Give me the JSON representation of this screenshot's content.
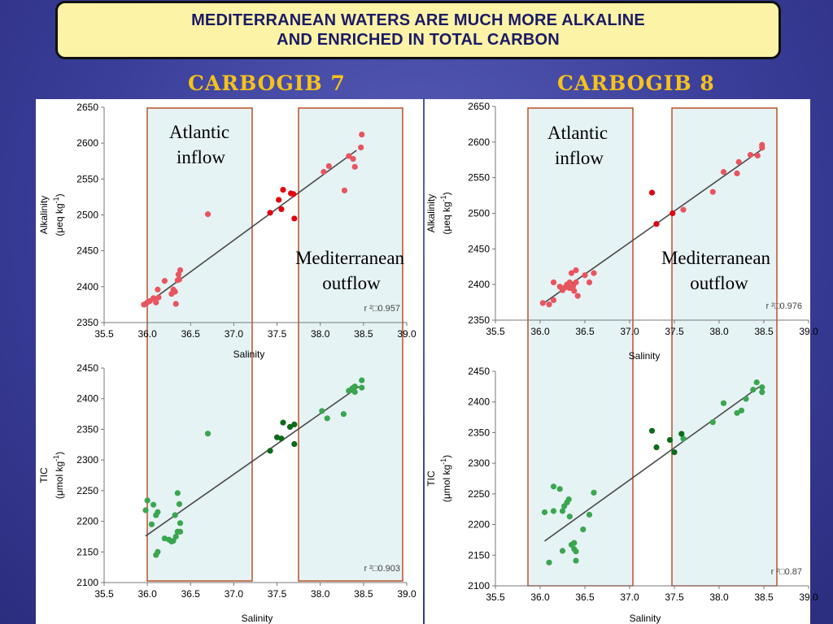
{
  "header": {
    "title_line1": "MEDITERRANEAN WATERS ARE MUCH MORE ALKALINE",
    "title_line2": "AND ENRICHED IN TOTAL CARBON"
  },
  "sections": {
    "left": "CARBOGIB 7",
    "right": "CARBOGIB 8"
  },
  "regions": {
    "atlantic_line1": "Atlantic",
    "atlantic_line2": "inflow",
    "med_line1": "Mediterranean",
    "med_line2": "outflow"
  },
  "colors": {
    "alk_light": "#e8555e",
    "alk_dark": "#e3040f",
    "tic_light": "#3aa64f",
    "tic_dark": "#0c6b1a",
    "region_fill": "#e6f3f5",
    "region_border": "#b8532a",
    "fit_line": "#4a4a4a"
  },
  "chart_data": [
    {
      "id": "c7_alk",
      "type": "scatter",
      "xlabel": "Salinity",
      "ylabel_line1": "Alkalinity",
      "ylabel_unit": "(μeq kg",
      "ylabel_sup": "-1",
      "ylabel_close": ")",
      "xlim": [
        35.5,
        39.0
      ],
      "ylim": [
        2350,
        2650
      ],
      "xticks": [
        "35.5",
        "36.0",
        "36.5",
        "37.0",
        "37.5",
        "38.0",
        "38.5",
        "39.0"
      ],
      "yticks": [
        "2350",
        "2400",
        "2450",
        "2500",
        "2550",
        "2600",
        "2650"
      ],
      "r2_label": "r ²□0.957",
      "fit": [
        [
          35.97,
          2374
        ],
        [
          38.42,
          2590
        ]
      ],
      "series": [
        {
          "color_key": "alk_light",
          "points": [
            [
              35.96,
              2375
            ],
            [
              35.98,
              2376
            ],
            [
              36.0,
              2378
            ],
            [
              36.03,
              2380
            ],
            [
              36.07,
              2384
            ],
            [
              36.1,
              2378
            ],
            [
              36.12,
              2396
            ],
            [
              36.13,
              2385
            ],
            [
              36.2,
              2408
            ],
            [
              36.28,
              2390
            ],
            [
              36.3,
              2396
            ],
            [
              36.32,
              2393
            ],
            [
              36.33,
              2376
            ],
            [
              36.35,
              2409
            ],
            [
              36.36,
              2417
            ],
            [
              36.37,
              2410
            ],
            [
              36.38,
              2423
            ],
            [
              36.7,
              2501
            ],
            [
              38.04,
              2560
            ],
            [
              38.1,
              2568
            ],
            [
              38.28,
              2534
            ],
            [
              38.33,
              2582
            ],
            [
              38.38,
              2578
            ],
            [
              38.4,
              2567
            ],
            [
              38.47,
              2594
            ],
            [
              38.48,
              2612
            ]
          ]
        },
        {
          "color_key": "alk_dark",
          "points": [
            [
              37.42,
              2503
            ],
            [
              37.52,
              2521
            ],
            [
              37.55,
              2508
            ],
            [
              37.57,
              2535
            ],
            [
              37.66,
              2530
            ],
            [
              37.69,
              2529
            ],
            [
              37.7,
              2495
            ]
          ]
        }
      ]
    },
    {
      "id": "c8_alk",
      "type": "scatter",
      "xlabel": "Salinity",
      "ylabel_line1": "Alkalinity",
      "ylabel_unit": "(μeq kg",
      "ylabel_sup": "-1",
      "ylabel_close": ")",
      "xlim": [
        35.5,
        39.0
      ],
      "ylim": [
        2350,
        2650
      ],
      "xticks": [
        "35.5",
        "36.0",
        "36.5",
        "37.0",
        "37.5",
        "38.0",
        "38.5",
        "39.0"
      ],
      "yticks": [
        "2350",
        "2400",
        "2450",
        "2500",
        "2550",
        "2600",
        "2650"
      ],
      "r2_label": "r ²□0.976",
      "fit": [
        [
          36.02,
          2372
        ],
        [
          38.48,
          2590
        ]
      ],
      "series": [
        {
          "color_key": "alk_light",
          "points": [
            [
              36.03,
              2374
            ],
            [
              36.1,
              2372
            ],
            [
              36.15,
              2378
            ],
            [
              36.15,
              2403
            ],
            [
              36.22,
              2397
            ],
            [
              36.25,
              2392
            ],
            [
              36.28,
              2396
            ],
            [
              36.3,
              2400
            ],
            [
              36.33,
              2403
            ],
            [
              36.33,
              2395
            ],
            [
              36.35,
              2416
            ],
            [
              36.37,
              2398
            ],
            [
              36.38,
              2391
            ],
            [
              36.4,
              2420
            ],
            [
              36.4,
              2403
            ],
            [
              36.42,
              2384
            ],
            [
              36.5,
              2413
            ],
            [
              36.55,
              2403
            ],
            [
              36.6,
              2416
            ],
            [
              37.6,
              2505
            ],
            [
              37.93,
              2530
            ],
            [
              38.05,
              2558
            ],
            [
              38.2,
              2556
            ],
            [
              38.22,
              2572
            ],
            [
              38.35,
              2582
            ],
            [
              38.43,
              2581
            ],
            [
              38.48,
              2592
            ],
            [
              38.48,
              2596
            ]
          ]
        },
        {
          "color_key": "alk_dark",
          "points": [
            [
              37.25,
              2529
            ],
            [
              37.3,
              2485
            ],
            [
              37.48,
              2500
            ]
          ]
        }
      ]
    },
    {
      "id": "c7_tic",
      "type": "scatter",
      "xlabel": "Salinity",
      "ylabel_line1": "TIC",
      "ylabel_unit": "(μmol kg",
      "ylabel_sup": "-1",
      "ylabel_close": ")",
      "xlim": [
        35.5,
        39.0
      ],
      "ylim": [
        2100,
        2450
      ],
      "xticks": [
        "35.5",
        "36.0",
        "36.5",
        "37.0",
        "37.5",
        "38.0",
        "38.5",
        "39.0"
      ],
      "yticks": [
        "2100",
        "2150",
        "2200",
        "2250",
        "2300",
        "2350",
        "2400",
        "2450"
      ],
      "r2_label": "r ²□0.903",
      "fit": [
        [
          35.98,
          2176
        ],
        [
          38.45,
          2420
        ]
      ],
      "series": [
        {
          "color_key": "tic_light",
          "points": [
            [
              35.98,
              2218
            ],
            [
              36.0,
              2234
            ],
            [
              36.05,
              2195
            ],
            [
              36.07,
              2227
            ],
            [
              36.1,
              2210
            ],
            [
              36.12,
              2215
            ],
            [
              36.1,
              2145
            ],
            [
              36.12,
              2150
            ],
            [
              36.2,
              2172
            ],
            [
              36.25,
              2170
            ],
            [
              36.28,
              2167
            ],
            [
              36.3,
              2168
            ],
            [
              36.32,
              2210
            ],
            [
              36.33,
              2175
            ],
            [
              36.35,
              2183
            ],
            [
              36.35,
              2246
            ],
            [
              36.37,
              2228
            ],
            [
              36.38,
              2197
            ],
            [
              36.38,
              2183
            ],
            [
              36.7,
              2343
            ],
            [
              38.02,
              2380
            ],
            [
              38.08,
              2368
            ],
            [
              38.27,
              2375
            ],
            [
              38.33,
              2413
            ],
            [
              38.37,
              2417
            ],
            [
              38.4,
              2420
            ],
            [
              38.4,
              2411
            ],
            [
              38.48,
              2418
            ],
            [
              38.48,
              2430
            ]
          ]
        },
        {
          "color_key": "tic_dark",
          "points": [
            [
              37.42,
              2315
            ],
            [
              37.5,
              2337
            ],
            [
              37.55,
              2335
            ],
            [
              37.57,
              2361
            ],
            [
              37.65,
              2354
            ],
            [
              37.7,
              2326
            ],
            [
              37.7,
              2358
            ]
          ]
        }
      ]
    },
    {
      "id": "c8_tic",
      "type": "scatter",
      "xlabel": "Salinity",
      "ylabel_line1": "TIC",
      "ylabel_unit": "(μmol kg",
      "ylabel_sup": "-1",
      "ylabel_close": ")",
      "xlim": [
        35.5,
        39.0
      ],
      "ylim": [
        2100,
        2450
      ],
      "xticks": [
        "35.5",
        "36.0",
        "36.5",
        "37.0",
        "37.5",
        "38.0",
        "38.5",
        "39.0"
      ],
      "yticks": [
        "2100",
        "2150",
        "2200",
        "2250",
        "2300",
        "2350",
        "2400",
        "2450"
      ],
      "r2_label": "r ²□0.87",
      "fit": [
        [
          36.05,
          2173
        ],
        [
          38.45,
          2425
        ]
      ],
      "series": [
        {
          "color_key": "tic_light",
          "points": [
            [
              36.05,
              2220
            ],
            [
              36.1,
              2138
            ],
            [
              36.15,
              2262
            ],
            [
              36.15,
              2222
            ],
            [
              36.22,
              2258
            ],
            [
              36.25,
              2222
            ],
            [
              36.27,
              2230
            ],
            [
              36.25,
              2157
            ],
            [
              36.3,
              2236
            ],
            [
              36.32,
              2241
            ],
            [
              36.33,
              2213
            ],
            [
              36.35,
              2167
            ],
            [
              36.38,
              2160
            ],
            [
              36.38,
              2170
            ],
            [
              36.4,
              2156
            ],
            [
              36.4,
              2141
            ],
            [
              36.48,
              2192
            ],
            [
              36.55,
              2216
            ],
            [
              36.6,
              2252
            ],
            [
              37.6,
              2340
            ],
            [
              37.93,
              2367
            ],
            [
              38.05,
              2398
            ],
            [
              38.2,
              2382
            ],
            [
              38.25,
              2386
            ],
            [
              38.3,
              2405
            ],
            [
              38.38,
              2420
            ],
            [
              38.42,
              2432
            ],
            [
              38.48,
              2416
            ],
            [
              38.48,
              2424
            ]
          ]
        },
        {
          "color_key": "tic_dark",
          "points": [
            [
              37.25,
              2353
            ],
            [
              37.3,
              2326
            ],
            [
              37.45,
              2338
            ],
            [
              37.5,
              2318
            ],
            [
              37.58,
              2348
            ]
          ]
        }
      ]
    }
  ]
}
